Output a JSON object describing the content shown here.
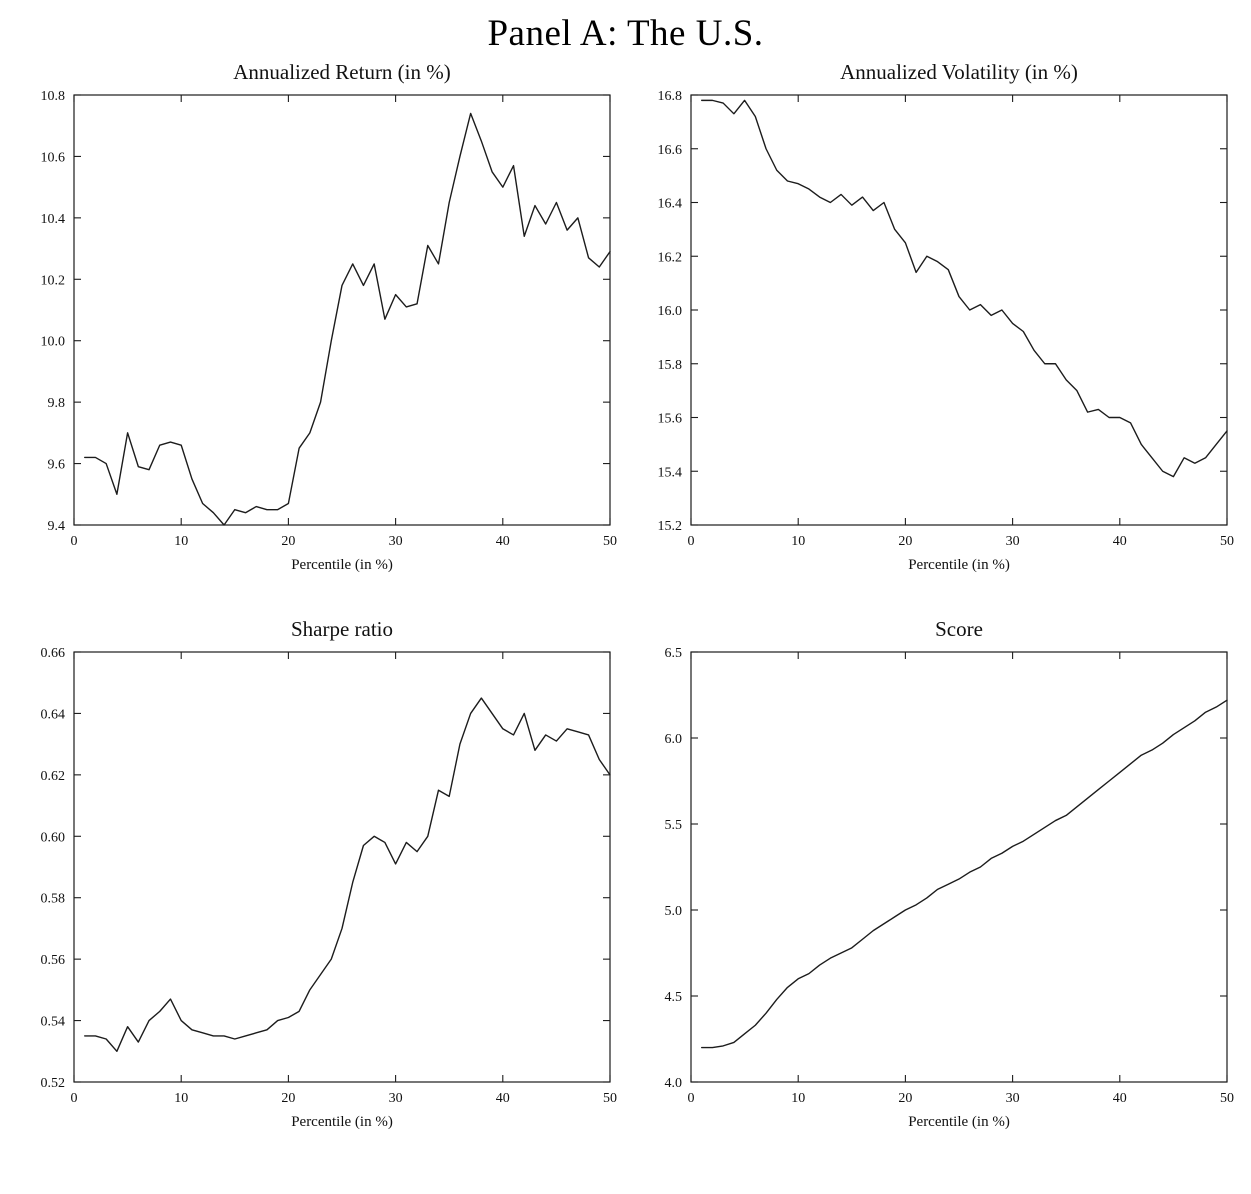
{
  "page": {
    "title": "Panel A: The U.S.",
    "background": "#ffffff",
    "text_color": "#111111",
    "line_color": "#1c1c1c"
  },
  "chart_data": [
    {
      "type": "line",
      "title": "Annualized Return (in %)",
      "xlabel": "Percentile (in %)",
      "ylabel": "",
      "xlim": [
        0,
        50
      ],
      "ylim": [
        9.4,
        10.8
      ],
      "xticks": [
        0,
        10,
        20,
        30,
        40,
        50
      ],
      "xtick_labels": [
        "0",
        "10",
        "20",
        "30",
        "40",
        "50"
      ],
      "yticks": [
        9.4,
        9.6,
        9.8,
        10.0,
        10.2,
        10.4,
        10.6,
        10.8
      ],
      "ytick_labels": [
        "9.4",
        "9.6",
        "9.8",
        "10.0",
        "10.2",
        "10.4",
        "10.6",
        "10.8"
      ],
      "grid": false,
      "legend": null,
      "x": [
        1,
        2,
        3,
        4,
        5,
        6,
        7,
        8,
        9,
        10,
        11,
        12,
        13,
        14,
        15,
        16,
        17,
        18,
        19,
        20,
        21,
        22,
        23,
        24,
        25,
        26,
        27,
        28,
        29,
        30,
        31,
        32,
        33,
        34,
        35,
        36,
        37,
        38,
        39,
        40,
        41,
        42,
        43,
        44,
        45,
        46,
        47,
        48,
        49,
        50
      ],
      "y": [
        9.62,
        9.62,
        9.6,
        9.5,
        9.7,
        9.59,
        9.58,
        9.66,
        9.67,
        9.66,
        9.55,
        9.47,
        9.44,
        9.4,
        9.45,
        9.44,
        9.46,
        9.45,
        9.45,
        9.47,
        9.65,
        9.7,
        9.8,
        10.0,
        10.18,
        10.25,
        10.18,
        10.25,
        10.07,
        10.15,
        10.11,
        10.12,
        10.31,
        10.25,
        10.45,
        10.6,
        10.74,
        10.65,
        10.55,
        10.5,
        10.57,
        10.34,
        10.44,
        10.38,
        10.45,
        10.36,
        10.4,
        10.27,
        10.24,
        10.29
      ]
    },
    {
      "type": "line",
      "title": "Annualized Volatility (in %)",
      "xlabel": "Percentile (in %)",
      "ylabel": "",
      "xlim": [
        0,
        50
      ],
      "ylim": [
        15.2,
        16.8
      ],
      "xticks": [
        0,
        10,
        20,
        30,
        40,
        50
      ],
      "xtick_labels": [
        "0",
        "10",
        "20",
        "30",
        "40",
        "50"
      ],
      "yticks": [
        15.2,
        15.4,
        15.6,
        15.8,
        16.0,
        16.2,
        16.4,
        16.6,
        16.8
      ],
      "ytick_labels": [
        "15.2",
        "15.4",
        "15.6",
        "15.8",
        "16.0",
        "16.2",
        "16.4",
        "16.6",
        "16.8"
      ],
      "grid": false,
      "legend": null,
      "x": [
        1,
        2,
        3,
        4,
        5,
        6,
        7,
        8,
        9,
        10,
        11,
        12,
        13,
        14,
        15,
        16,
        17,
        18,
        19,
        20,
        21,
        22,
        23,
        24,
        25,
        26,
        27,
        28,
        29,
        30,
        31,
        32,
        33,
        34,
        35,
        36,
        37,
        38,
        39,
        40,
        41,
        42,
        43,
        44,
        45,
        46,
        47,
        48,
        49,
        50
      ],
      "y": [
        16.78,
        16.78,
        16.77,
        16.73,
        16.78,
        16.72,
        16.6,
        16.52,
        16.48,
        16.47,
        16.45,
        16.42,
        16.4,
        16.43,
        16.39,
        16.42,
        16.37,
        16.4,
        16.3,
        16.25,
        16.14,
        16.2,
        16.18,
        16.15,
        16.05,
        16.0,
        16.02,
        15.98,
        16.0,
        15.95,
        15.92,
        15.85,
        15.8,
        15.8,
        15.74,
        15.7,
        15.62,
        15.63,
        15.6,
        15.6,
        15.58,
        15.5,
        15.45,
        15.4,
        15.38,
        15.45,
        15.43,
        15.45,
        15.5,
        15.55
      ]
    },
    {
      "type": "line",
      "title": "Sharpe ratio",
      "xlabel": "Percentile (in %)",
      "ylabel": "",
      "xlim": [
        0,
        50
      ],
      "ylim": [
        0.52,
        0.66
      ],
      "xticks": [
        0,
        10,
        20,
        30,
        40,
        50
      ],
      "xtick_labels": [
        "0",
        "10",
        "20",
        "30",
        "40",
        "50"
      ],
      "yticks": [
        0.52,
        0.54,
        0.56,
        0.58,
        0.6,
        0.62,
        0.64,
        0.66
      ],
      "ytick_labels": [
        "0.52",
        "0.54",
        "0.56",
        "0.58",
        "0.60",
        "0.62",
        "0.64",
        "0.66"
      ],
      "grid": false,
      "legend": null,
      "x": [
        1,
        2,
        3,
        4,
        5,
        6,
        7,
        8,
        9,
        10,
        11,
        12,
        13,
        14,
        15,
        16,
        17,
        18,
        19,
        20,
        21,
        22,
        23,
        24,
        25,
        26,
        27,
        28,
        29,
        30,
        31,
        32,
        33,
        34,
        35,
        36,
        37,
        38,
        39,
        40,
        41,
        42,
        43,
        44,
        45,
        46,
        47,
        48,
        49,
        50
      ],
      "y": [
        0.535,
        0.535,
        0.534,
        0.53,
        0.538,
        0.533,
        0.54,
        0.543,
        0.547,
        0.54,
        0.537,
        0.536,
        0.535,
        0.535,
        0.534,
        0.535,
        0.536,
        0.537,
        0.54,
        0.541,
        0.543,
        0.55,
        0.555,
        0.56,
        0.57,
        0.585,
        0.597,
        0.6,
        0.598,
        0.591,
        0.598,
        0.595,
        0.6,
        0.615,
        0.613,
        0.63,
        0.64,
        0.645,
        0.64,
        0.635,
        0.633,
        0.64,
        0.628,
        0.633,
        0.631,
        0.635,
        0.634,
        0.633,
        0.625,
        0.62
      ]
    },
    {
      "type": "line",
      "title": "Score",
      "xlabel": "Percentile (in %)",
      "ylabel": "",
      "xlim": [
        0,
        50
      ],
      "ylim": [
        4.0,
        6.5
      ],
      "xticks": [
        0,
        10,
        20,
        30,
        40,
        50
      ],
      "xtick_labels": [
        "0",
        "10",
        "20",
        "30",
        "40",
        "50"
      ],
      "yticks": [
        4.0,
        4.5,
        5.0,
        5.5,
        6.0,
        6.5
      ],
      "ytick_labels": [
        "4.0",
        "4.5",
        "5.0",
        "5.5",
        "6.0",
        "6.5"
      ],
      "grid": false,
      "legend": null,
      "x": [
        1,
        2,
        3,
        4,
        5,
        6,
        7,
        8,
        9,
        10,
        11,
        12,
        13,
        14,
        15,
        16,
        17,
        18,
        19,
        20,
        21,
        22,
        23,
        24,
        25,
        26,
        27,
        28,
        29,
        30,
        31,
        32,
        33,
        34,
        35,
        36,
        37,
        38,
        39,
        40,
        41,
        42,
        43,
        44,
        45,
        46,
        47,
        48,
        49,
        50
      ],
      "y": [
        4.2,
        4.2,
        4.21,
        4.23,
        4.28,
        4.33,
        4.4,
        4.48,
        4.55,
        4.6,
        4.63,
        4.68,
        4.72,
        4.75,
        4.78,
        4.83,
        4.88,
        4.92,
        4.96,
        5.0,
        5.03,
        5.07,
        5.12,
        5.15,
        5.18,
        5.22,
        5.25,
        5.3,
        5.33,
        5.37,
        5.4,
        5.44,
        5.48,
        5.52,
        5.55,
        5.6,
        5.65,
        5.7,
        5.75,
        5.8,
        5.85,
        5.9,
        5.93,
        5.97,
        6.02,
        6.06,
        6.1,
        6.15,
        6.18,
        6.22
      ]
    }
  ]
}
